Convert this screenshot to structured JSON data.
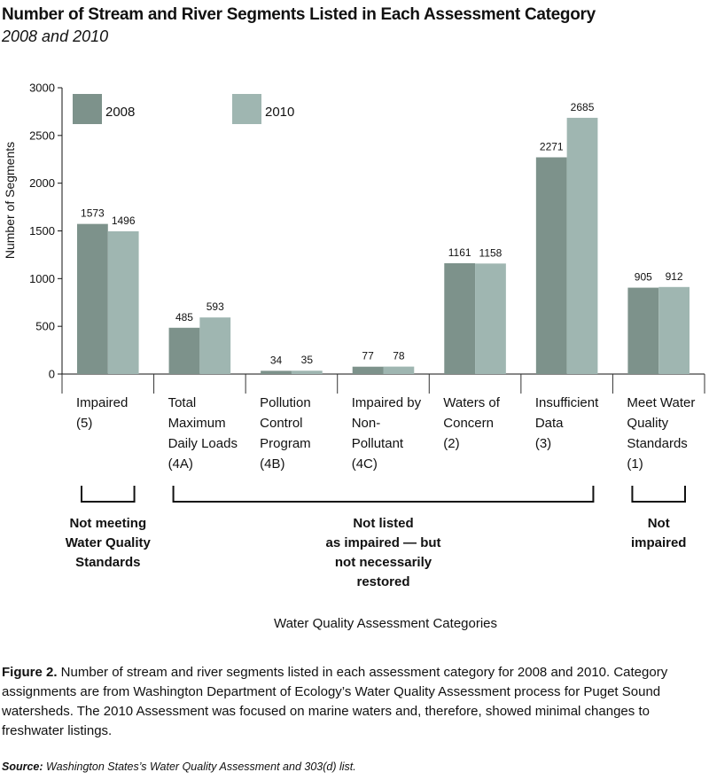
{
  "chart_data": {
    "type": "bar",
    "title": "Number of Stream and River Segments Listed in Each Assessment Category",
    "subtitle": "2008 and 2010",
    "ylabel": "Number of Segments",
    "xlabel": "Water Quality Assessment Categories",
    "ylim": [
      0,
      3000
    ],
    "yticks": [
      0,
      500,
      1000,
      1500,
      2000,
      2500,
      3000
    ],
    "grid": false,
    "legend": "top-left",
    "categories": [
      [
        "Impaired",
        "(5)"
      ],
      [
        "Total",
        "Maximum",
        "Daily Loads",
        "(4A)"
      ],
      [
        "Pollution",
        "Control",
        "Program",
        "(4B)"
      ],
      [
        "Impaired by",
        "Non-",
        "Pollutant",
        "(4C)"
      ],
      [
        "Waters of",
        "Concern",
        "(2)"
      ],
      [
        "Insufficient",
        "Data",
        "(3)"
      ],
      [
        "Meet Water",
        "Quality",
        "Standards",
        "(1)"
      ]
    ],
    "series": [
      {
        "name": "2008",
        "color": "#7d928b",
        "values": [
          1573,
          485,
          34,
          77,
          1161,
          2271,
          905
        ]
      },
      {
        "name": "2010",
        "color": "#9fb6b1",
        "values": [
          1496,
          593,
          35,
          78,
          1158,
          2685,
          912
        ]
      }
    ],
    "groups": [
      {
        "label": [
          "Not meeting",
          "Water Quality",
          "Standards"
        ],
        "from": 0,
        "to": 0
      },
      {
        "label": [
          "Not listed",
          "as impaired — but",
          "not necessarily",
          "restored"
        ],
        "from": 1,
        "to": 5
      },
      {
        "label": [
          "Not",
          "impaired"
        ],
        "from": 6,
        "to": 6
      }
    ]
  },
  "caption": {
    "figure_label": "Figure 2.",
    "text": " Number of stream and river segments listed in each assessment category for 2008 and 2010. Category assignments are from Washington Department of Ecology’s Water Quality Assessment process for Puget Sound watersheds. The 2010 Assessment was focused on marine waters and, therefore, showed minimal changes to freshwater listings."
  },
  "source": {
    "label": "Source:",
    "text": " Washington States’s Water Quality Assessment and 303(d) list."
  }
}
